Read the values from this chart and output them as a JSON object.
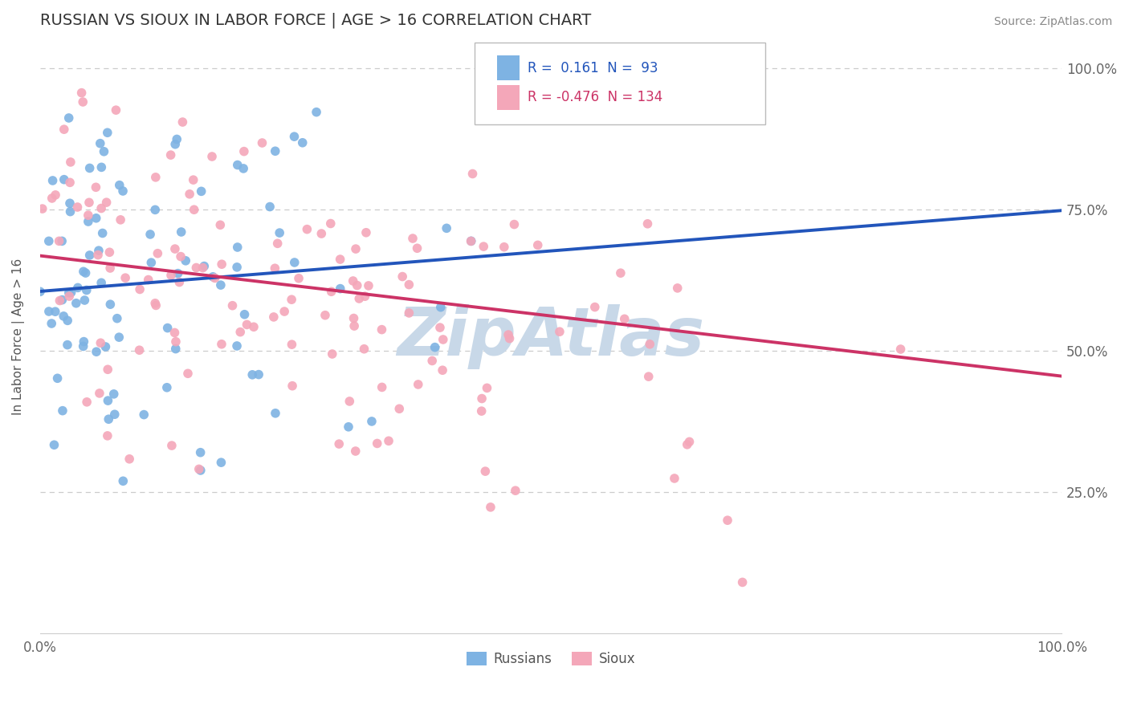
{
  "title": "RUSSIAN VS SIOUX IN LABOR FORCE | AGE > 16 CORRELATION CHART",
  "source": "Source: ZipAtlas.com",
  "ylabel": "In Labor Force | Age > 16",
  "xlim": [
    0.0,
    1.0
  ],
  "ylim": [
    0.0,
    1.05
  ],
  "x_tick_labels": [
    "0.0%",
    "100.0%"
  ],
  "y_tick_labels_right": [
    "25.0%",
    "50.0%",
    "75.0%",
    "100.0%"
  ],
  "y_ticks_right": [
    0.25,
    0.5,
    0.75,
    1.0
  ],
  "russian_color": "#7eb3e3",
  "sioux_color": "#f4a7b9",
  "russian_line_color": "#2255bb",
  "sioux_line_color": "#cc3366",
  "legend_r1_color": "#2255bb",
  "legend_r2_color": "#cc3366",
  "watermark": "ZipAtlas",
  "watermark_color": "#c8d8e8",
  "background_color": "#ffffff",
  "grid_color": "#cccccc",
  "russians_label": "Russians",
  "sioux_label": "Sioux",
  "russian_R": 0.161,
  "sioux_R": -0.476,
  "russian_N": 93,
  "sioux_N": 134,
  "russian_line_y0": 0.605,
  "russian_line_y1": 0.748,
  "sioux_line_y0": 0.668,
  "sioux_line_y1": 0.455
}
